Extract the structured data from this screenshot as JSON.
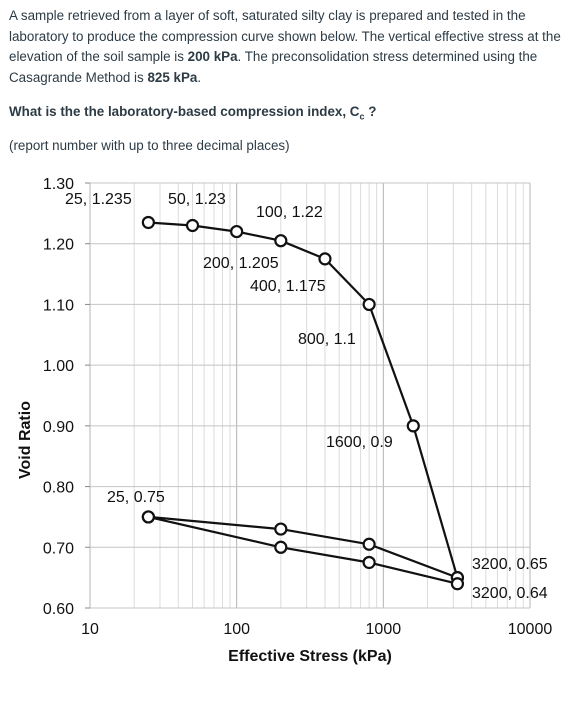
{
  "question": {
    "p1": "A sample retrieved from a layer of soft, saturated silty clay is prepared and tested in the laboratory to produce the compression curve shown below.  The vertical effective stress at the elevation of the soil sample is ",
    "sigma_v": "200 kPa",
    "p2": ". The preconsolidation stress determined using the Casagrande Method is ",
    "sigma_p": "825 kPa",
    "p3": ".",
    "ask_prefix": "What is the the laboratory-based compression index, C",
    "ask_sub": "c",
    "ask_suffix": " ?",
    "note": "(report number with up to three decimal places)"
  },
  "chart_data": {
    "type": "line",
    "xlabel": "Effective Stress (kPa)",
    "ylabel": "Void Ratio",
    "x_scale": "log",
    "xlim": [
      10,
      10000
    ],
    "ylim": [
      0.6,
      1.3
    ],
    "x_ticks": [
      "10",
      "100",
      "1000",
      "10000"
    ],
    "y_ticks": [
      "0.60",
      "0.70",
      "0.80",
      "0.90",
      "1.00",
      "1.10",
      "1.20",
      "1.30"
    ],
    "grid": true,
    "series": [
      {
        "points": [
          [
            25,
            1.235
          ],
          [
            50,
            1.23
          ],
          [
            100,
            1.22
          ],
          [
            200,
            1.205
          ],
          [
            400,
            1.175
          ],
          [
            800,
            1.1
          ],
          [
            1600,
            0.9
          ],
          [
            3200,
            0.65
          ]
        ]
      },
      {
        "points": [
          [
            3200,
            0.65
          ],
          [
            800,
            0.705
          ],
          [
            200,
            0.73
          ],
          [
            25,
            0.75
          ]
        ]
      },
      {
        "points": [
          [
            25,
            0.75
          ],
          [
            200,
            0.7
          ],
          [
            800,
            0.675
          ],
          [
            3200,
            0.64
          ]
        ]
      }
    ],
    "annotations": [
      "25, 1.235",
      "50, 1.23",
      "100, 1.22",
      "200, 1.205",
      "400, 1.175",
      "800, 1.1",
      "1600, 0.9",
      "25, 0.75",
      "3200, 0.65",
      "3200, 0.64"
    ]
  }
}
